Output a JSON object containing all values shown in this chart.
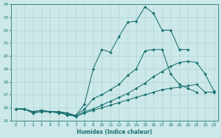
{
  "xlabel": "Humidex (Indice chaleur)",
  "ylabel": "",
  "xlim": [
    -0.5,
    23.5
  ],
  "ylim": [
    15,
    24
  ],
  "yticks": [
    15,
    16,
    17,
    18,
    19,
    20,
    21,
    22,
    23,
    24
  ],
  "xticks": [
    0,
    1,
    2,
    3,
    4,
    5,
    6,
    7,
    8,
    9,
    10,
    11,
    12,
    13,
    14,
    15,
    16,
    17,
    18,
    19,
    20,
    21,
    22,
    23
  ],
  "bg_color": "#cce8e8",
  "line_color": "#1a7070",
  "grid_color": "#aed4d4",
  "lines": [
    {
      "x": [
        0,
        1,
        2,
        3,
        4,
        5,
        6,
        7,
        8,
        9,
        10,
        11,
        12,
        13,
        14,
        15,
        16,
        17,
        18,
        19,
        20
      ],
      "y": [
        15.9,
        15.9,
        15.7,
        15.8,
        15.7,
        15.7,
        15.6,
        15.4,
        16.3,
        19.0,
        20.5,
        20.3,
        21.5,
        22.6,
        22.7,
        23.8,
        23.3,
        22.0,
        22.0,
        20.5,
        20.5
      ]
    },
    {
      "x": [
        0,
        1,
        2,
        3,
        4,
        5,
        6,
        7,
        8,
        9,
        10,
        11,
        12,
        13,
        14,
        15,
        16,
        17,
        18,
        19,
        20,
        21
      ],
      "y": [
        15.9,
        15.9,
        15.7,
        15.8,
        15.7,
        15.7,
        15.4,
        15.4,
        15.9,
        16.7,
        17.0,
        17.4,
        17.8,
        18.5,
        19.0,
        20.4,
        20.5,
        20.5,
        18.6,
        17.8,
        17.5,
        17.2
      ]
    },
    {
      "x": [
        0,
        1,
        2,
        3,
        4,
        5,
        6,
        7,
        8,
        9,
        10,
        11,
        12,
        13,
        14,
        15,
        16,
        17,
        18,
        19,
        20,
        21,
        22,
        23
      ],
      "y": [
        15.9,
        15.9,
        15.6,
        15.7,
        15.7,
        15.6,
        15.6,
        15.3,
        15.7,
        15.9,
        16.2,
        16.5,
        16.8,
        17.1,
        17.5,
        17.9,
        18.4,
        18.8,
        19.2,
        19.5,
        19.6,
        19.5,
        18.6,
        17.3
      ]
    },
    {
      "x": [
        0,
        1,
        2,
        3,
        4,
        5,
        6,
        7,
        8,
        9,
        10,
        11,
        12,
        13,
        14,
        15,
        16,
        17,
        18,
        19,
        20,
        21,
        22,
        23
      ],
      "y": [
        15.9,
        15.9,
        15.6,
        15.7,
        15.7,
        15.6,
        15.5,
        15.3,
        15.6,
        15.8,
        16.0,
        16.2,
        16.4,
        16.6,
        16.8,
        17.0,
        17.2,
        17.4,
        17.5,
        17.6,
        17.7,
        17.8,
        17.2,
        17.2
      ]
    }
  ]
}
